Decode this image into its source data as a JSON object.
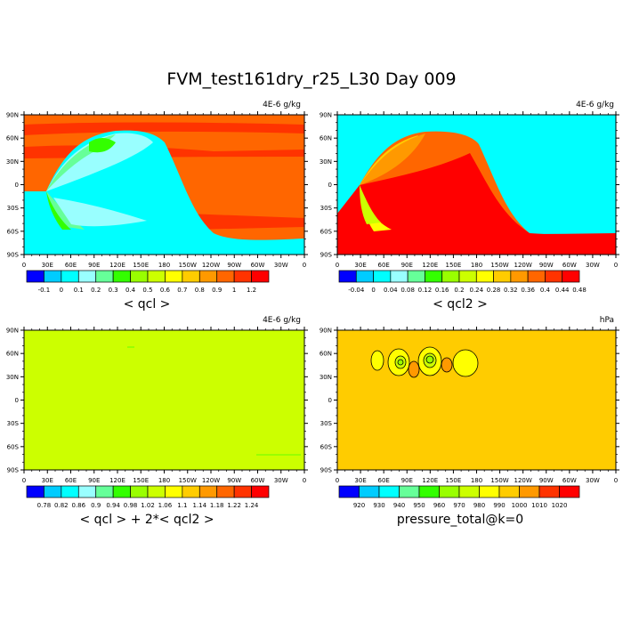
{
  "title": "FVM_test161dry_r25_L30 Day 009",
  "colors": {
    "bg": "#ffffff",
    "cyan": "#00ffff",
    "orange": "#ff6600",
    "red": "#ff0000",
    "green": "#33ff00",
    "lime": "#ccff00",
    "yellow": "#ffff00",
    "amber": "#ffcc00"
  },
  "chart_data": [
    {
      "type": "heatmap",
      "id": "qcl",
      "title": "< qcl >",
      "units": "4E-6 g/kg",
      "x_ticks": [
        "0",
        "30E",
        "60E",
        "90E",
        "120E",
        "150E",
        "180",
        "150W",
        "120W",
        "90W",
        "60W",
        "30W",
        "0"
      ],
      "y_ticks": [
        "90N",
        "60N",
        "30N",
        "0",
        "30S",
        "60S",
        "90S"
      ],
      "xlim": [
        0,
        360
      ],
      "ylim": [
        -90,
        90
      ],
      "legend_position": "bottom",
      "colorbar_labels": [
        "-0.1",
        "0",
        "0.1",
        "0.2",
        "0.3",
        "0.4",
        "0.5",
        "0.6",
        "0.7",
        "0.8",
        "0.9",
        "1",
        "1.2"
      ],
      "colorbar_colors": [
        "#0000ff",
        "#00ccff",
        "#00ffff",
        "#99ffff",
        "#66ff99",
        "#33ff00",
        "#99ff00",
        "#ccff00",
        "#ffff00",
        "#ffcc00",
        "#ff9900",
        "#ff6600",
        "#ff3300",
        "#ff0000"
      ]
    },
    {
      "type": "heatmap",
      "id": "qcl2",
      "title": "< qcl2 >",
      "units": "4E-6 g/kg",
      "x_ticks": [
        "0",
        "30E",
        "60E",
        "90E",
        "120E",
        "150E",
        "180",
        "150W",
        "120W",
        "90W",
        "60W",
        "30W",
        "0"
      ],
      "y_ticks": [
        "90N",
        "60N",
        "30N",
        "0",
        "30S",
        "60S",
        "90S"
      ],
      "xlim": [
        0,
        360
      ],
      "ylim": [
        -90,
        90
      ],
      "legend_position": "bottom",
      "colorbar_labels": [
        "-0.04",
        "0",
        "0.04",
        "0.08",
        "0.12",
        "0.16",
        "0.2",
        "0.24",
        "0.28",
        "0.32",
        "0.36",
        "0.4",
        "0.44",
        "0.48"
      ],
      "colorbar_colors": [
        "#0000ff",
        "#00ccff",
        "#00ffff",
        "#99ffff",
        "#66ff99",
        "#33ff00",
        "#99ff00",
        "#ccff00",
        "#ffff00",
        "#ffcc00",
        "#ff9900",
        "#ff6600",
        "#ff3300",
        "#ff0000"
      ]
    },
    {
      "type": "heatmap",
      "id": "sum",
      "title": "< qcl > + 2*< qcl2 >",
      "units": "4E-6 g/kg",
      "x_ticks": [
        "0",
        "30E",
        "60E",
        "90E",
        "120E",
        "150E",
        "180",
        "150W",
        "120W",
        "90W",
        "60W",
        "30W",
        "0"
      ],
      "y_ticks": [
        "90N",
        "60N",
        "30N",
        "0",
        "30S",
        "60S",
        "90S"
      ],
      "xlim": [
        0,
        360
      ],
      "ylim": [
        -90,
        90
      ],
      "legend_position": "bottom",
      "colorbar_labels": [
        "0.78",
        "0.82",
        "0.86",
        "0.9",
        "0.94",
        "0.98",
        "1.02",
        "1.06",
        "1.1",
        "1.14",
        "1.18",
        "1.22",
        "1.24"
      ],
      "colorbar_colors": [
        "#0000ff",
        "#00ccff",
        "#00ffff",
        "#99ffff",
        "#66ff99",
        "#33ff00",
        "#99ff00",
        "#ccff00",
        "#ffff00",
        "#ffcc00",
        "#ff9900",
        "#ff6600",
        "#ff3300",
        "#ff0000"
      ]
    },
    {
      "type": "heatmap",
      "id": "pressure",
      "title": "pressure_total@k=0",
      "units": "hPa",
      "x_ticks": [
        "0",
        "30E",
        "60E",
        "90E",
        "120E",
        "150E",
        "180",
        "150W",
        "120W",
        "90W",
        "60W",
        "30W",
        "0"
      ],
      "y_ticks": [
        "90N",
        "60N",
        "30N",
        "0",
        "30S",
        "60S",
        "90S"
      ],
      "xlim": [
        0,
        360
      ],
      "ylim": [
        -90,
        90
      ],
      "legend_position": "bottom",
      "colorbar_labels": [
        "920",
        "930",
        "940",
        "950",
        "960",
        "970",
        "980",
        "990",
        "1000",
        "1010",
        "1020"
      ],
      "colorbar_colors": [
        "#0000ff",
        "#00ccff",
        "#00ffff",
        "#66ff99",
        "#33ff00",
        "#99ff00",
        "#ccff00",
        "#ffff00",
        "#ffcc00",
        "#ff9900",
        "#ff3300",
        "#ff0000"
      ]
    }
  ]
}
